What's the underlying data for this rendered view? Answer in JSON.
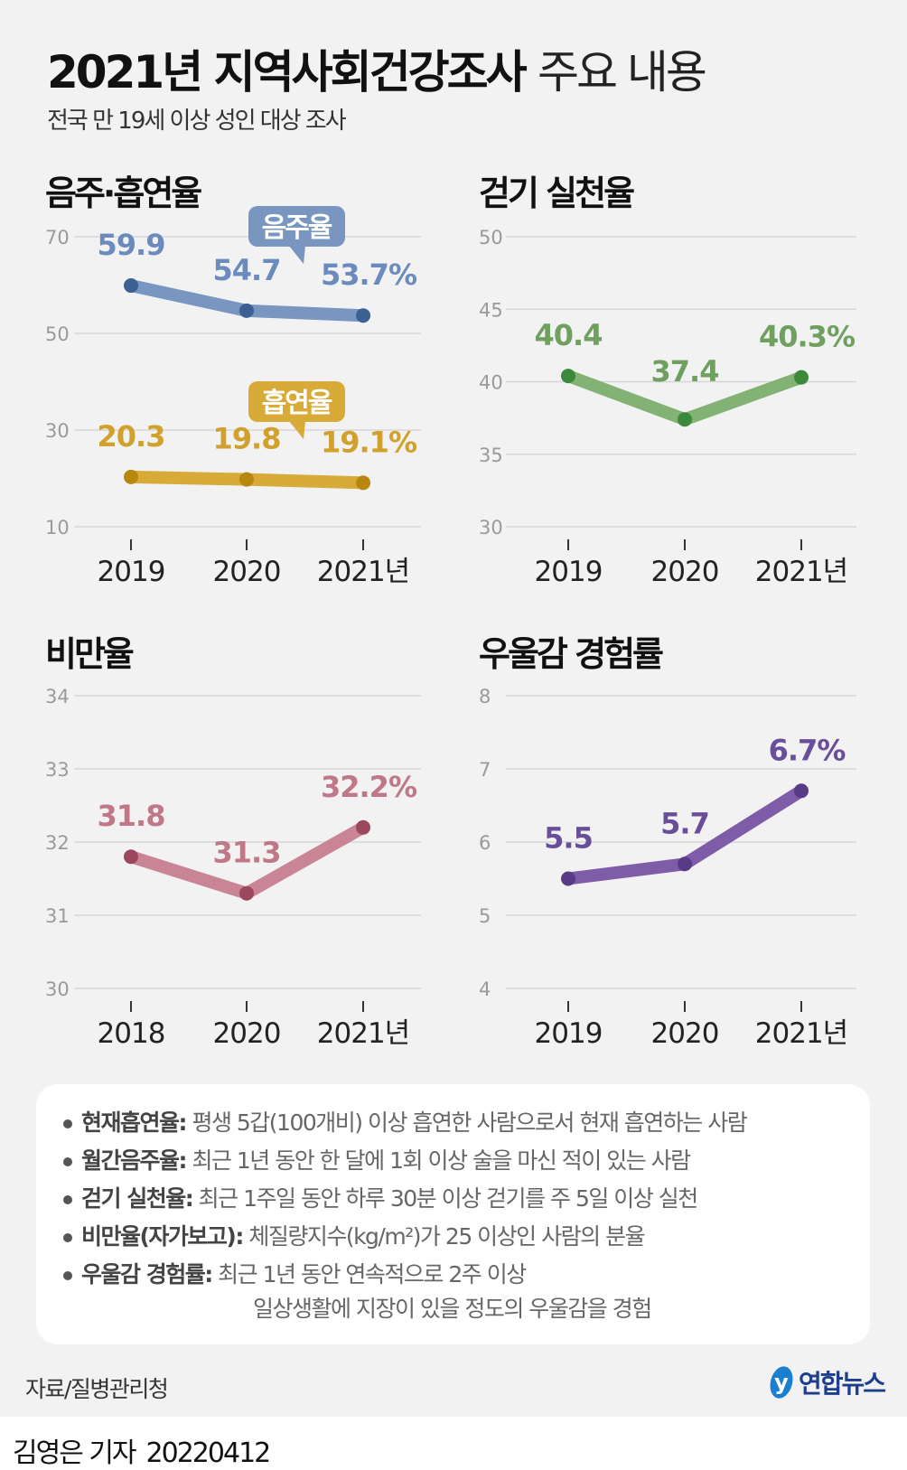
{
  "header": {
    "title_bold": "2021년 지역사회건강조사",
    "title_light": "주요 내용",
    "subtitle": "전국 만 19세 이상 성인 대상 조사"
  },
  "chart_data": [
    {
      "type": "line",
      "title": "음주·흡연율",
      "categories": [
        "2019",
        "2020",
        "2021년"
      ],
      "ylim": [
        10,
        70
      ],
      "yticks": [
        70,
        50,
        30,
        10
      ],
      "grid": true,
      "series": [
        {
          "name": "음주율",
          "values": [
            59.9,
            54.7,
            53.7
          ],
          "labels": [
            "59.9",
            "54.7",
            "53.7%"
          ],
          "line": "#7896c0",
          "dot": "#3c5f94",
          "text": "#6b8bbe"
        },
        {
          "name": "흡연율",
          "values": [
            20.3,
            19.8,
            19.1
          ],
          "labels": [
            "20.3",
            "19.8",
            "19.1%"
          ],
          "line": "#d8aa38",
          "dot": "#b8870f",
          "text": "#d2a02c"
        }
      ]
    },
    {
      "type": "line",
      "title": "걷기 실천율",
      "categories": [
        "2019",
        "2020",
        "2021년"
      ],
      "ylim": [
        30,
        50
      ],
      "yticks": [
        50,
        45,
        40,
        35,
        30
      ],
      "grid": true,
      "series": [
        {
          "values": [
            40.4,
            37.4,
            40.3
          ],
          "labels": [
            "40.4",
            "37.4",
            "40.3%"
          ],
          "line": "#82b274",
          "dot": "#3b8a3b",
          "text": "#6fa060"
        }
      ]
    },
    {
      "type": "line",
      "title": "비만율",
      "categories": [
        "2018",
        "2020",
        "2021년"
      ],
      "ylim": [
        30,
        34
      ],
      "yticks": [
        34,
        33,
        32,
        31,
        30
      ],
      "grid": true,
      "series": [
        {
          "values": [
            31.8,
            31.3,
            32.2
          ],
          "labels": [
            "31.8",
            "31.3",
            "32.2%"
          ],
          "line": "#c98596",
          "dot": "#9b485d",
          "text": "#c07888"
        }
      ]
    },
    {
      "type": "line",
      "title": "우울감 경험률",
      "categories": [
        "2019",
        "2020",
        "2021년"
      ],
      "ylim": [
        4,
        8
      ],
      "yticks": [
        8,
        7,
        6,
        5,
        4
      ],
      "grid": true,
      "series": [
        {
          "values": [
            5.5,
            5.7,
            6.7
          ],
          "labels": [
            "5.5",
            "5.7",
            "6.7%"
          ],
          "line": "#7e5ca8",
          "dot": "#583b86",
          "text": "#6a4e9a"
        }
      ]
    }
  ],
  "notes": [
    {
      "term": "현재흡연율:",
      "desc": "평생 5갑(100개비) 이상 흡연한 사람으로서 현재 흡연하는 사람"
    },
    {
      "term": "월간음주율:",
      "desc": "최근 1년 동안 한 달에 1회 이상 술을 마신 적이 있는 사람"
    },
    {
      "term": "걷기 실천율:",
      "desc": "최근 1주일 동안 하루 30분 이상 걷기를 주 5일 이상 실천"
    },
    {
      "term": "비만율(자가보고):",
      "desc": "체질량지수(kg/m²)가 25 이상인 사람의 분율"
    },
    {
      "term": "우울감 경험률:",
      "desc": "최근 1년 동안 연속적으로 2주 이상",
      "desc2": "일상생활에 지장이 있을 정도의 우울감을 경험"
    }
  ],
  "footer": {
    "source": "자료/질병관리청",
    "logo": "연합뉴스",
    "reporter": "김영은 기자",
    "date": "20220412"
  }
}
